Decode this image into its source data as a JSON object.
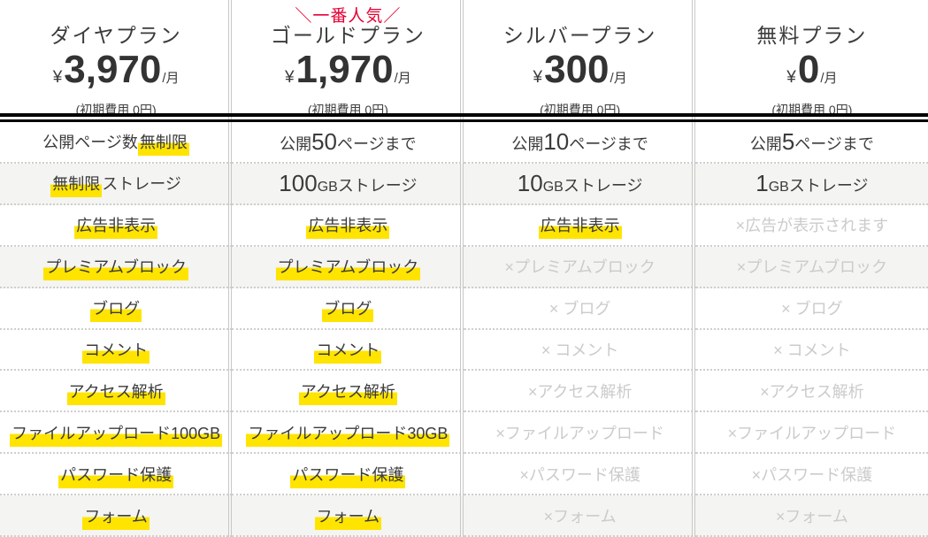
{
  "colors": {
    "text": "#3b3b3b",
    "disabled_text": "#cbcbcb",
    "highlight_yellow": "#ffe400",
    "badge_red": "#e60033",
    "stripe_background": "#f4f4f2",
    "divider_gray": "#c8c8c8",
    "header_rule_black": "#000000"
  },
  "plans": [
    {
      "badge": "",
      "name": "ダイヤプラン",
      "currency": "¥",
      "price": "3,970",
      "per": "/月",
      "note": "(初期費用 0円)"
    },
    {
      "badge": "＼一番人気／",
      "name": "ゴールドプラン",
      "currency": "¥",
      "price": "1,970",
      "per": "/月",
      "note": "(初期費用 0円)"
    },
    {
      "badge": "",
      "name": "シルバープラン",
      "currency": "¥",
      "price": "300",
      "per": "/月",
      "note": "(初期費用 0円)"
    },
    {
      "badge": "",
      "name": "無料プラン",
      "currency": "¥",
      "price": "0",
      "per": "/月",
      "note": "(初期費用 0円)"
    }
  ],
  "feature_rows": [
    {
      "striped": false,
      "cells": [
        {
          "disabled": false,
          "segments": [
            {
              "text": "公開ページ数"
            },
            {
              "text": "無制限",
              "highlight": true
            }
          ]
        },
        {
          "disabled": false,
          "segments": [
            {
              "text": "公開"
            },
            {
              "text": "50",
              "large": true
            },
            {
              "text": "ページまで"
            }
          ]
        },
        {
          "disabled": false,
          "segments": [
            {
              "text": "公開"
            },
            {
              "text": "10",
              "large": true
            },
            {
              "text": "ページまで"
            }
          ]
        },
        {
          "disabled": false,
          "segments": [
            {
              "text": "公開"
            },
            {
              "text": "5",
              "large": true
            },
            {
              "text": "ページまで"
            }
          ]
        }
      ]
    },
    {
      "striped": true,
      "cells": [
        {
          "disabled": false,
          "segments": [
            {
              "text": "無制限",
              "highlight": true
            },
            {
              "text": "ストレージ"
            }
          ]
        },
        {
          "disabled": false,
          "segments": [
            {
              "text": "100",
              "large": true
            },
            {
              "text": "GB",
              "small": true
            },
            {
              "text": "ストレージ"
            }
          ]
        },
        {
          "disabled": false,
          "segments": [
            {
              "text": "10",
              "large": true
            },
            {
              "text": "GB",
              "small": true
            },
            {
              "text": "ストレージ"
            }
          ]
        },
        {
          "disabled": false,
          "segments": [
            {
              "text": "1",
              "large": true
            },
            {
              "text": "GB",
              "small": true
            },
            {
              "text": "ストレージ"
            }
          ]
        }
      ]
    },
    {
      "striped": false,
      "cells": [
        {
          "disabled": false,
          "segments": [
            {
              "text": "広告非表示",
              "highlight": true
            }
          ]
        },
        {
          "disabled": false,
          "segments": [
            {
              "text": "広告非表示",
              "highlight": true
            }
          ]
        },
        {
          "disabled": false,
          "segments": [
            {
              "text": "広告非表示",
              "highlight": true
            }
          ]
        },
        {
          "disabled": true,
          "segments": [
            {
              "text": "×広告が表示されます"
            }
          ]
        }
      ]
    },
    {
      "striped": true,
      "cells": [
        {
          "disabled": false,
          "segments": [
            {
              "text": "プレミアムブロック",
              "highlight": true
            }
          ]
        },
        {
          "disabled": false,
          "segments": [
            {
              "text": "プレミアムブロック",
              "highlight": true
            }
          ]
        },
        {
          "disabled": true,
          "segments": [
            {
              "text": "×プレミアムブロック"
            }
          ]
        },
        {
          "disabled": true,
          "segments": [
            {
              "text": "×プレミアムブロック"
            }
          ]
        }
      ]
    },
    {
      "striped": false,
      "cells": [
        {
          "disabled": false,
          "segments": [
            {
              "text": "ブログ",
              "highlight": true
            }
          ]
        },
        {
          "disabled": false,
          "segments": [
            {
              "text": "ブログ",
              "highlight": true
            }
          ]
        },
        {
          "disabled": true,
          "segments": [
            {
              "text": "× ブログ"
            }
          ]
        },
        {
          "disabled": true,
          "segments": [
            {
              "text": "× ブログ"
            }
          ]
        }
      ]
    },
    {
      "striped": false,
      "cells": [
        {
          "disabled": false,
          "segments": [
            {
              "text": "コメント",
              "highlight": true
            }
          ]
        },
        {
          "disabled": false,
          "segments": [
            {
              "text": "コメント",
              "highlight": true
            }
          ]
        },
        {
          "disabled": true,
          "segments": [
            {
              "text": "× コメント"
            }
          ]
        },
        {
          "disabled": true,
          "segments": [
            {
              "text": "× コメント"
            }
          ]
        }
      ]
    },
    {
      "striped": false,
      "cells": [
        {
          "disabled": false,
          "segments": [
            {
              "text": "アクセス解析",
              "highlight": true
            }
          ]
        },
        {
          "disabled": false,
          "segments": [
            {
              "text": "アクセス解析",
              "highlight": true
            }
          ]
        },
        {
          "disabled": true,
          "segments": [
            {
              "text": "×アクセス解析"
            }
          ]
        },
        {
          "disabled": true,
          "segments": [
            {
              "text": "×アクセス解析"
            }
          ]
        }
      ]
    },
    {
      "striped": false,
      "cells": [
        {
          "disabled": false,
          "segments": [
            {
              "text": "ファイルアップロード100GB",
              "highlight": true
            }
          ]
        },
        {
          "disabled": false,
          "segments": [
            {
              "text": "ファイルアップロード30GB",
              "highlight": true
            }
          ]
        },
        {
          "disabled": true,
          "segments": [
            {
              "text": "×ファイルアップロード"
            }
          ]
        },
        {
          "disabled": true,
          "segments": [
            {
              "text": "×ファイルアップロード"
            }
          ]
        }
      ]
    },
    {
      "striped": false,
      "cells": [
        {
          "disabled": false,
          "segments": [
            {
              "text": "パスワード保護",
              "highlight": true
            }
          ]
        },
        {
          "disabled": false,
          "segments": [
            {
              "text": "パスワード保護",
              "highlight": true
            }
          ]
        },
        {
          "disabled": true,
          "segments": [
            {
              "text": "×パスワード保護"
            }
          ]
        },
        {
          "disabled": true,
          "segments": [
            {
              "text": "×パスワード保護"
            }
          ]
        }
      ]
    },
    {
      "striped": true,
      "cells": [
        {
          "disabled": false,
          "segments": [
            {
              "text": "フォーム",
              "highlight": true
            }
          ]
        },
        {
          "disabled": false,
          "segments": [
            {
              "text": "フォーム",
              "highlight": true
            }
          ]
        },
        {
          "disabled": true,
          "segments": [
            {
              "text": "×フォーム"
            }
          ]
        },
        {
          "disabled": true,
          "segments": [
            {
              "text": "×フォーム"
            }
          ]
        }
      ]
    }
  ]
}
